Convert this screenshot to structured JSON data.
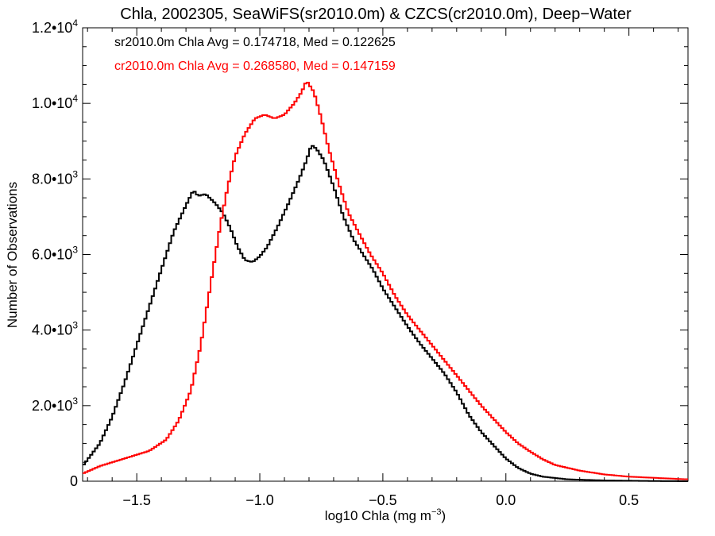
{
  "chart_data": {
    "type": "line",
    "title": "Chla, 2002305, SeaWiFS(sr2010.0m) & CZCS(cr2010.0m), Deep−Water",
    "xlabel": "log10 Chla (mg m",
    "xlabel_sup": "−3",
    "xlabel_close": ")",
    "ylabel": "Number of Observations",
    "xlim": [
      -1.72,
      0.74
    ],
    "ylim": [
      0,
      12000
    ],
    "grid": false,
    "step": true,
    "x_ticks": [
      {
        "value": -1.5,
        "label": "−1.5"
      },
      {
        "value": -1.0,
        "label": "−1.0"
      },
      {
        "value": -0.5,
        "label": "−0.5"
      },
      {
        "value": 0.0,
        "label": "0.0"
      },
      {
        "value": 0.5,
        "label": "0.5"
      }
    ],
    "y_ticks": [
      {
        "value": 0,
        "mant": "0",
        "exp": ""
      },
      {
        "value": 2000,
        "mant": "2.0•10",
        "exp": "3"
      },
      {
        "value": 4000,
        "mant": "4.0•10",
        "exp": "3"
      },
      {
        "value": 6000,
        "mant": "6.0•10",
        "exp": "3"
      },
      {
        "value": 8000,
        "mant": "8.0•10",
        "exp": "3"
      },
      {
        "value": 10000,
        "mant": "1.0•10",
        "exp": "4"
      },
      {
        "value": 12000,
        "mant": "1.2•10",
        "exp": "4"
      }
    ],
    "annotations": [
      {
        "text": "sr2010.0m Chla Avg = 0.174718, Med = 0.122625",
        "color": "#000000"
      },
      {
        "text": "cr2010.0m Chla Avg = 0.268580, Med = 0.147159",
        "color": "#ff0000"
      }
    ],
    "series": [
      {
        "color": "#000000",
        "points": [
          [
            -1.72,
            400
          ],
          [
            -1.65,
            1000
          ],
          [
            -1.6,
            1700
          ],
          [
            -1.55,
            2600
          ],
          [
            -1.5,
            3600
          ],
          [
            -1.45,
            4600
          ],
          [
            -1.4,
            5600
          ],
          [
            -1.35,
            6600
          ],
          [
            -1.3,
            7300
          ],
          [
            -1.27,
            7700
          ],
          [
            -1.25,
            7550
          ],
          [
            -1.22,
            7600
          ],
          [
            -1.18,
            7350
          ],
          [
            -1.15,
            7100
          ],
          [
            -1.12,
            6700
          ],
          [
            -1.09,
            6200
          ],
          [
            -1.06,
            5850
          ],
          [
            -1.03,
            5800
          ],
          [
            -1.0,
            5950
          ],
          [
            -0.97,
            6200
          ],
          [
            -0.93,
            6700
          ],
          [
            -0.88,
            7400
          ],
          [
            -0.84,
            8000
          ],
          [
            -0.81,
            8500
          ],
          [
            -0.79,
            8900
          ],
          [
            -0.77,
            8800
          ],
          [
            -0.74,
            8500
          ],
          [
            -0.7,
            7800
          ],
          [
            -0.66,
            7000
          ],
          [
            -0.62,
            6400
          ],
          [
            -0.58,
            6000
          ],
          [
            -0.54,
            5600
          ],
          [
            -0.5,
            5100
          ],
          [
            -0.45,
            4600
          ],
          [
            -0.4,
            4100
          ],
          [
            -0.35,
            3650
          ],
          [
            -0.3,
            3250
          ],
          [
            -0.25,
            2850
          ],
          [
            -0.2,
            2350
          ],
          [
            -0.15,
            1750
          ],
          [
            -0.1,
            1300
          ],
          [
            -0.05,
            950
          ],
          [
            0.0,
            600
          ],
          [
            0.05,
            350
          ],
          [
            0.1,
            200
          ],
          [
            0.15,
            120
          ],
          [
            0.25,
            50
          ],
          [
            0.4,
            20
          ],
          [
            0.6,
            5
          ],
          [
            0.74,
            0
          ]
        ]
      },
      {
        "color": "#ff0000",
        "points": [
          [
            -1.72,
            200
          ],
          [
            -1.65,
            400
          ],
          [
            -1.55,
            600
          ],
          [
            -1.45,
            800
          ],
          [
            -1.38,
            1100
          ],
          [
            -1.33,
            1600
          ],
          [
            -1.28,
            2400
          ],
          [
            -1.24,
            3600
          ],
          [
            -1.2,
            5200
          ],
          [
            -1.16,
            6800
          ],
          [
            -1.13,
            7800
          ],
          [
            -1.1,
            8600
          ],
          [
            -1.06,
            9200
          ],
          [
            -1.02,
            9600
          ],
          [
            -0.98,
            9700
          ],
          [
            -0.94,
            9600
          ],
          [
            -0.9,
            9700
          ],
          [
            -0.86,
            10000
          ],
          [
            -0.83,
            10300
          ],
          [
            -0.81,
            10600
          ],
          [
            -0.78,
            10300
          ],
          [
            -0.75,
            9600
          ],
          [
            -0.72,
            8800
          ],
          [
            -0.68,
            7900
          ],
          [
            -0.64,
            7100
          ],
          [
            -0.6,
            6600
          ],
          [
            -0.55,
            6000
          ],
          [
            -0.5,
            5500
          ],
          [
            -0.45,
            4900
          ],
          [
            -0.4,
            4400
          ],
          [
            -0.35,
            4000
          ],
          [
            -0.3,
            3600
          ],
          [
            -0.25,
            3200
          ],
          [
            -0.2,
            2800
          ],
          [
            -0.15,
            2400
          ],
          [
            -0.1,
            2000
          ],
          [
            -0.05,
            1650
          ],
          [
            0.0,
            1300
          ],
          [
            0.05,
            1000
          ],
          [
            0.1,
            780
          ],
          [
            0.15,
            580
          ],
          [
            0.2,
            430
          ],
          [
            0.3,
            280
          ],
          [
            0.4,
            180
          ],
          [
            0.5,
            120
          ],
          [
            0.6,
            90
          ],
          [
            0.7,
            60
          ],
          [
            0.74,
            50
          ]
        ]
      }
    ]
  }
}
